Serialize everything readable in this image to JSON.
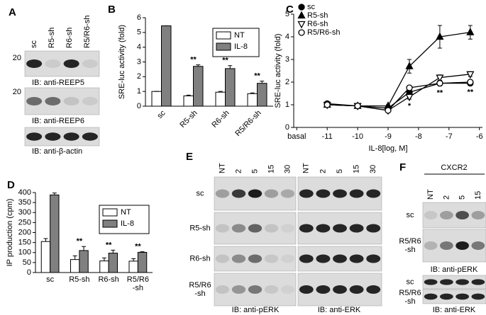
{
  "figure": {
    "panel_a": {
      "label": "A",
      "lanes": [
        "sc",
        "R5-sh",
        "R6-sh",
        "R5/R6-sh"
      ],
      "markers": [
        "20",
        "20"
      ],
      "captions": [
        "IB: anti-REEP5",
        "IB: anti-REEP6",
        "IB: anti-β-actin"
      ]
    },
    "panel_e": {
      "label": "E",
      "lanes": [
        "NT",
        "2",
        "5",
        "15",
        "30",
        "NT",
        "2",
        "5",
        "15",
        "30"
      ],
      "rows": [
        "sc",
        "R5-sh",
        "R6-sh",
        "R5/R6\n-sh"
      ],
      "captions": [
        "IB: anti-pERK",
        "IB: anti-ERK"
      ]
    },
    "panel_f": {
      "label": "F",
      "group": "CXCR2",
      "lanes": [
        "NT",
        "2",
        "5",
        "15"
      ],
      "rows_top": [
        "sc",
        "R5/R6\n-sh"
      ],
      "rows_bottom": [
        "sc",
        "R5/R6\n-sh"
      ],
      "captions": [
        "IB: anti-pERK",
        "IB: anti-ERK"
      ]
    }
  },
  "chart_data": [
    {
      "type": "bar",
      "panel": "B",
      "y_label": "SRE-luc activity (fold)",
      "categories": [
        "sc",
        "R5-sh",
        "R6-sh",
        "R5/R6-sh"
      ],
      "series": [
        {
          "name": "NT",
          "color": "#ffffff",
          "values": [
            1,
            0.7,
            0.95,
            0.85
          ],
          "errors": [
            0,
            0.05,
            0.05,
            0.05
          ]
        },
        {
          "name": "IL-8",
          "color": "#808080",
          "values": [
            5.45,
            2.7,
            2.55,
            1.55
          ],
          "errors": [
            0,
            0.1,
            0.2,
            0.15
          ]
        }
      ],
      "annotations": [
        {
          "text": "**",
          "index": 1
        },
        {
          "text": "**",
          "index": 2
        },
        {
          "text": "**",
          "index": 3
        }
      ],
      "ylim": [
        0,
        6
      ],
      "yticks": [
        0,
        1,
        2,
        3,
        4,
        5,
        6
      ]
    },
    {
      "type": "line",
      "panel": "C",
      "y_label": "SRE-luc activity (fold)",
      "x_label": "IL-8[log, M]",
      "x": [
        -11,
        -10,
        -9,
        -8.3,
        -7.3,
        -6.3
      ],
      "series": [
        {
          "name": "sc",
          "color": "#000000",
          "marker": "circle",
          "filled": true,
          "values": [
            1.05,
            0.95,
            0.85,
            1.55,
            1.95,
            1.95
          ],
          "errors": [
            0.08,
            0.05,
            0.05,
            0.12,
            0.12,
            0.1
          ]
        },
        {
          "name": "R5-sh",
          "color": "#000000",
          "marker": "triangle",
          "filled": true,
          "values": [
            1.0,
            0.95,
            0.95,
            2.7,
            4.0,
            4.2
          ],
          "errors": [
            0.05,
            0.05,
            0.05,
            0.3,
            0.5,
            0.3
          ]
        },
        {
          "name": "R6-sh",
          "color": "#000000",
          "marker": "triangle-down",
          "filled": false,
          "values": [
            1.0,
            0.95,
            0.75,
            1.35,
            2.2,
            2.35
          ],
          "errors": [
            0.05,
            0.05,
            0.08,
            0.1,
            0.12,
            0.1
          ]
        },
        {
          "name": "R5/R6-sh",
          "color": "#000000",
          "marker": "circle",
          "filled": false,
          "values": [
            1.0,
            0.95,
            0.75,
            1.75,
            1.95,
            2.0
          ],
          "errors": [
            0.05,
            0.05,
            0.08,
            0.1,
            0.1,
            0.1
          ]
        }
      ],
      "annotations": [
        {
          "text": "*",
          "index": 3
        },
        {
          "text": "**",
          "index": 4
        },
        {
          "text": "**",
          "index": 5
        }
      ],
      "xlim": [
        -12.1,
        -5.9
      ],
      "xticks": [
        {
          "value": -12,
          "label": "basal"
        },
        -11,
        -10,
        -9,
        -8,
        -7,
        -6
      ],
      "ylim": [
        0,
        5
      ],
      "yticks": [
        0,
        1,
        2,
        3,
        4,
        5
      ]
    },
    {
      "type": "bar",
      "panel": "D",
      "y_label": "IP production (cpm)",
      "categories": [
        "sc",
        "R5-sh",
        "R6-sh",
        "R5/R6\n-sh"
      ],
      "series": [
        {
          "name": "NT",
          "color": "#ffffff",
          "values": [
            155,
            65,
            58,
            57
          ],
          "errors": [
            15,
            18,
            15,
            12
          ]
        },
        {
          "name": "IL-8",
          "color": "#808080",
          "values": [
            388,
            110,
            97,
            101
          ],
          "errors": [
            10,
            20,
            15,
            3
          ]
        }
      ],
      "annotations": [
        {
          "text": "**",
          "index": 1
        },
        {
          "text": "**",
          "index": 2
        },
        {
          "text": "**",
          "index": 3
        }
      ],
      "ylim": [
        0,
        400
      ],
      "yticks": [
        0,
        50,
        100,
        150,
        200,
        250,
        300,
        350,
        400
      ]
    }
  ]
}
